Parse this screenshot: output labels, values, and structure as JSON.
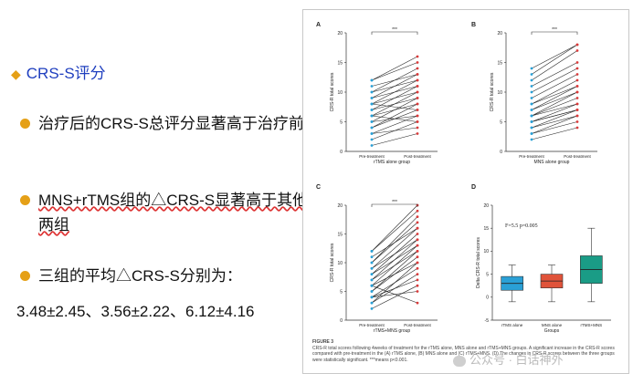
{
  "left": {
    "heading": "CRS-S评分",
    "bullets": [
      {
        "text": "治疗后的CRS-S总评分显著高于治疗前"
      },
      {
        "text": "MNS+rTMS组的△CRS-S显著高于其他两组"
      },
      {
        "text": "三组的平均△CRS-S分别为："
      }
    ],
    "means_line": "3.48±2.45、3.56±2.22、6.12±4.16"
  },
  "figure": {
    "label": "FIGURE 3",
    "caption": "CRS-R total scores following 4weeks of treatment for the rTMS alone, MNS alone and rTMS+MNS groups. A significant increase in the CRS-R scores compared with pre-treatment in the (A) rTMS alone, (B) MNS alone and (C) rTMS+MNS. (D) The changes in CRS-R scores between the three groups were statistically significant. ***means p<0.001."
  },
  "watermark": "公众号 · 白话神外",
  "colors": {
    "pre": "#2aa0d6",
    "post": "#d93a3a",
    "box1": "#2aa0d6",
    "box2": "#e0533a",
    "box3": "#1a9c86",
    "heading": "#1f3fbf",
    "bullet": "#e5a017"
  },
  "chart_data": [
    {
      "panel": "A",
      "type": "line",
      "xlabel": "rTMS alone group",
      "ylabel": "CRS-R total scores",
      "categories": [
        "Pre-treatment",
        "Post-treatment"
      ],
      "ylim": [
        0,
        20
      ],
      "yticks": [
        0,
        5,
        10,
        15,
        20
      ],
      "significance": "***",
      "pairs": [
        [
          1,
          3
        ],
        [
          2,
          5
        ],
        [
          3,
          4
        ],
        [
          3,
          6
        ],
        [
          4,
          7
        ],
        [
          4,
          8
        ],
        [
          5,
          6
        ],
        [
          5,
          9
        ],
        [
          6,
          8
        ],
        [
          6,
          10
        ],
        [
          7,
          9
        ],
        [
          7,
          11
        ],
        [
          8,
          10
        ],
        [
          8,
          12
        ],
        [
          9,
          11
        ],
        [
          9,
          13
        ],
        [
          10,
          12
        ],
        [
          10,
          14
        ],
        [
          11,
          13
        ],
        [
          12,
          15
        ],
        [
          6,
          5
        ],
        [
          8,
          7
        ],
        [
          12,
          16
        ]
      ]
    },
    {
      "panel": "B",
      "type": "line",
      "xlabel": "MNS alone group",
      "ylabel": "CRS-R total scores",
      "categories": [
        "Pre-treatment",
        "Post-treatment"
      ],
      "ylim": [
        0,
        20
      ],
      "yticks": [
        0,
        5,
        10,
        15,
        20
      ],
      "significance": "***",
      "pairs": [
        [
          2,
          4
        ],
        [
          3,
          5
        ],
        [
          3,
          6
        ],
        [
          4,
          6
        ],
        [
          4,
          7
        ],
        [
          5,
          7
        ],
        [
          5,
          8
        ],
        [
          6,
          9
        ],
        [
          6,
          10
        ],
        [
          7,
          10
        ],
        [
          7,
          11
        ],
        [
          8,
          11
        ],
        [
          8,
          12
        ],
        [
          9,
          13
        ],
        [
          10,
          14
        ],
        [
          11,
          15
        ],
        [
          12,
          17
        ],
        [
          13,
          18
        ],
        [
          14,
          18
        ],
        [
          5,
          7
        ],
        [
          6,
          8
        ]
      ]
    },
    {
      "panel": "C",
      "type": "line",
      "xlabel": "rTMS+MNS group",
      "ylabel": "CRS-R total scores",
      "categories": [
        "Pre-treatment",
        "Post-treatment"
      ],
      "ylim": [
        0,
        20
      ],
      "yticks": [
        0,
        5,
        10,
        15,
        20
      ],
      "significance": "***",
      "pairs": [
        [
          2,
          6
        ],
        [
          3,
          8
        ],
        [
          3,
          10
        ],
        [
          4,
          7
        ],
        [
          4,
          9
        ],
        [
          5,
          11
        ],
        [
          5,
          12
        ],
        [
          6,
          10
        ],
        [
          6,
          13
        ],
        [
          7,
          12
        ],
        [
          7,
          14
        ],
        [
          8,
          13
        ],
        [
          8,
          15
        ],
        [
          9,
          16
        ],
        [
          10,
          17
        ],
        [
          10,
          18
        ],
        [
          11,
          16
        ],
        [
          12,
          19
        ],
        [
          12,
          20
        ],
        [
          9,
          14
        ],
        [
          6,
          3
        ],
        [
          4,
          5
        ]
      ]
    },
    {
      "panel": "D",
      "type": "box",
      "xlabel": "Groups",
      "ylabel": "Delta CRS-R total scores",
      "categories": [
        "rTMS alone",
        "MNS alone",
        "rTMS+MNS"
      ],
      "ylim": [
        -5,
        20
      ],
      "yticks": [
        -5,
        0,
        5,
        10,
        15,
        20
      ],
      "annotation": "F=5.5  p=0.005",
      "boxes": [
        {
          "min": -1,
          "q1": 1.5,
          "median": 3,
          "q3": 4.5,
          "max": 7
        },
        {
          "min": -1,
          "q1": 2,
          "median": 3.5,
          "q3": 5,
          "max": 7
        },
        {
          "min": -1,
          "q1": 3,
          "median": 6,
          "q3": 9,
          "max": 15
        }
      ]
    }
  ]
}
